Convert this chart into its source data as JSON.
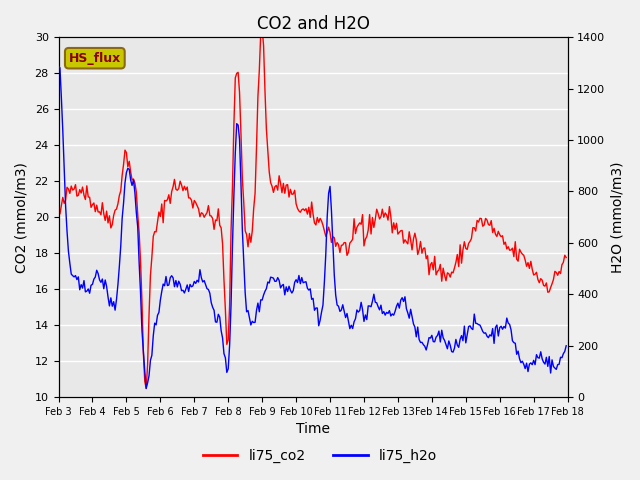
{
  "title": "CO2 and H2O",
  "ylabel_left": "CO2 (mmol/m3)",
  "ylabel_right": "H2O (mmol/m3)",
  "xlabel": "Time",
  "ylim_left": [
    10,
    30
  ],
  "ylim_right": [
    0,
    1400
  ],
  "yticks_left": [
    10,
    12,
    14,
    16,
    18,
    20,
    22,
    24,
    26,
    28,
    30
  ],
  "yticks_right": [
    0,
    200,
    400,
    600,
    800,
    1000,
    1200,
    1400
  ],
  "xtick_labels": [
    "Feb 3",
    "Feb 4",
    "Feb 5",
    "Feb 6",
    "Feb 7",
    "Feb 8",
    "Feb 9",
    "Feb 10",
    "Feb 11",
    "Feb 12",
    "Feb 13",
    "Feb 14",
    "Feb 15",
    "Feb 16",
    "Feb 17",
    "Feb 18"
  ],
  "bg_color": "#e8e8e8",
  "grid_color": "#ffffff",
  "co2_color": "red",
  "h2o_color": "blue",
  "legend_labels": [
    "li75_co2",
    "li75_h2o"
  ],
  "hs_flux_box_color": "#c8c800",
  "hs_flux_text_color": "#8b0000",
  "line_width": 1.0
}
